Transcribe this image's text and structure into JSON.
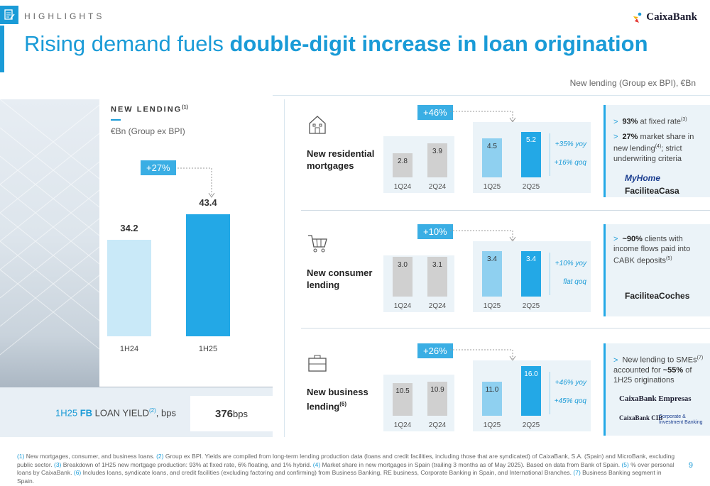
{
  "header": {
    "section": "HIGHLIGHTS",
    "title_light": "Rising demand fuels ",
    "title_bold": "double-digit increase in loan origination",
    "brand": "CaixaBank"
  },
  "subheader": "New lending (Group ex BPI), €Bn",
  "new_lending": {
    "label": "NEW LENDING",
    "label_note": "(1)",
    "unit": "€Bn (Group ex BPI)",
    "growth": "+27%",
    "bars": [
      {
        "period": "1H24",
        "value": "34.2"
      },
      {
        "period": "1H25",
        "value": "43.4"
      }
    ]
  },
  "yield": {
    "prefix": "1H25 ",
    "fb": "FB",
    "label": " LOAN YIELD",
    "note": "(2)",
    "unit_label": ", bps",
    "value": "376",
    "value_unit": " bps"
  },
  "categories": [
    {
      "name_l1": "New residential",
      "name_l2": "mortgages",
      "name_note": "",
      "icon": "house-icon",
      "growth": "+46%",
      "bars": [
        {
          "period": "1Q24",
          "value": "2.8"
        },
        {
          "period": "2Q24",
          "value": "3.9"
        },
        {
          "period": "1Q25",
          "value": "4.5"
        },
        {
          "period": "2Q25",
          "value": "5.2"
        }
      ],
      "yoy": "+35% yoy",
      "qoq": "+16% qoq",
      "bullets": [
        {
          "bold": "93%",
          "text": " at fixed rate",
          "note": "(3)"
        },
        {
          "bold": "27%",
          "text": " market share in new lending",
          "note": "(4)",
          "rest": "; strict underwriting criteria"
        }
      ],
      "brands": [
        "MyHome",
        "FaciliteaCasa"
      ]
    },
    {
      "name_l1": "New consumer",
      "name_l2": "lending",
      "name_note": "",
      "icon": "shopping-cart-icon",
      "growth": "+10%",
      "bars": [
        {
          "period": "1Q24",
          "value": "3.0"
        },
        {
          "period": "2Q24",
          "value": "3.1"
        },
        {
          "period": "1Q25",
          "value": "3.4"
        },
        {
          "period": "2Q25",
          "value": "3.4"
        }
      ],
      "yoy": "+10% yoy",
      "qoq": "flat qoq",
      "bullets": [
        {
          "bold": "~90%",
          "text": " clients with income flows paid into CABK deposits",
          "note": "(5)"
        }
      ],
      "brands": [
        "FaciliteaCoches"
      ]
    },
    {
      "name_l1": "New business",
      "name_l2": "lending",
      "name_note": "(6)",
      "icon": "briefcase-icon",
      "growth": "+26%",
      "bars": [
        {
          "period": "1Q24",
          "value": "10.5"
        },
        {
          "period": "2Q24",
          "value": "10.9"
        },
        {
          "period": "1Q25",
          "value": "11.0"
        },
        {
          "period": "2Q25",
          "value": "16.0"
        }
      ],
      "yoy": "+46% yoy",
      "qoq": "+45% qoq",
      "bullets": [
        {
          "bold": "",
          "text": "New lending to SMEs",
          "note": "(7)",
          "rest": " accounted for ",
          "bold2": "~55%",
          "rest2": " of 1H25 originations"
        }
      ],
      "brands": [
        "CaixaBank Empresas",
        "CaixaBank CIB",
        "Corporate & Investment Banking"
      ]
    }
  ],
  "footnotes": [
    {
      "n": "(1)",
      "t": " New mortgages, consumer, and business loans. "
    },
    {
      "n": "(2)",
      "t": " Group ex BPI. Yields are compiled from long-term lending production data (loans and credit facilities, including those that are syndicated) of CaixaBank, S.A. (Spain) and MicroBank, excluding public sector. "
    },
    {
      "n": "(3)",
      "t": " Breakdown of 1H25 new mortgage production: 93% at fixed rate, 6% floating, and 1% hybrid. "
    },
    {
      "n": "(4)",
      "t": " Market share in new mortgages in Spain (trailing 3 months as of May 2025). Based on data from Bank of Spain. "
    },
    {
      "n": "(5)",
      "t": " % over personal loans by CaixaBank. "
    },
    {
      "n": "(6)",
      "t": " Includes loans, syndicate loans, and credit facilities (excluding factoring and confirming) from Business Banking, RE business, Corporate Banking in Spain, and International Branches. "
    },
    {
      "n": "(7)",
      "t": " Business Banking segment in Spain."
    }
  ],
  "page_number": "9",
  "colors": {
    "accent": "#1a9bd7",
    "bar_dark": "#23a8e6",
    "bar_light": "#8fd0f0",
    "bar_grey": "#d0d0d0"
  },
  "chart_data": [
    {
      "type": "bar",
      "title": "NEW LENDING",
      "categories": [
        "1H24",
        "1H25"
      ],
      "values": [
        34.2,
        43.4
      ],
      "ylabel": "€Bn (Group ex BPI)"
    },
    {
      "type": "bar",
      "title": "New residential mortgages",
      "categories": [
        "1Q24",
        "2Q24",
        "1Q25",
        "2Q25"
      ],
      "values": [
        2.8,
        3.9,
        4.5,
        5.2
      ]
    },
    {
      "type": "bar",
      "title": "New consumer lending",
      "categories": [
        "1Q24",
        "2Q24",
        "1Q25",
        "2Q25"
      ],
      "values": [
        3.0,
        3.1,
        3.4,
        3.4
      ]
    },
    {
      "type": "bar",
      "title": "New business lending",
      "categories": [
        "1Q24",
        "2Q24",
        "1Q25",
        "2Q25"
      ],
      "values": [
        10.5,
        10.9,
        11.0,
        16.0
      ]
    }
  ]
}
